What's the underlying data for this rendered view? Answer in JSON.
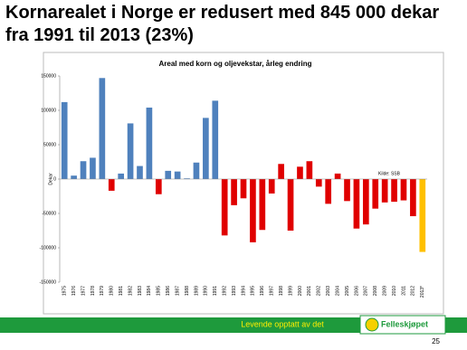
{
  "title": "Kornarealet i Norge er redusert med 845 000 dekar fra 1991 til 2013 (23%)",
  "chart_data": {
    "type": "bar",
    "title": "Areal med korn og oljevekstar, årleg endring",
    "y_label": "Dekar",
    "source": "Kilde: SSB",
    "categories": [
      "1975",
      "1976",
      "1977",
      "1978",
      "1979",
      "1980",
      "1981",
      "1982",
      "1983",
      "1984",
      "1985",
      "1986",
      "1987",
      "1988",
      "1989",
      "1990",
      "1991",
      "1992",
      "1993",
      "1994",
      "1995",
      "1996",
      "1997",
      "1998",
      "1999",
      "2000",
      "2001",
      "2002",
      "2003",
      "2004",
      "2005",
      "2006",
      "2007",
      "2008",
      "2009",
      "2010",
      "2011",
      "2012",
      "2013*"
    ],
    "values": [
      112000,
      5000,
      26000,
      31000,
      147000,
      -17000,
      8000,
      81000,
      19000,
      104000,
      -22000,
      12000,
      11000,
      1000,
      24000,
      89000,
      114000,
      -82000,
      -38000,
      -28000,
      -92000,
      -74000,
      -21000,
      22000,
      -75000,
      18000,
      26000,
      -11000,
      -36000,
      8000,
      -32000,
      -72000,
      -66000,
      -43000,
      -34000,
      -33000,
      -31000,
      -54000,
      -106000
    ],
    "colors": [
      "#4f81bd",
      "#4f81bd",
      "#4f81bd",
      "#4f81bd",
      "#4f81bd",
      "#e00000",
      "#4f81bd",
      "#4f81bd",
      "#4f81bd",
      "#4f81bd",
      "#e00000",
      "#4f81bd",
      "#4f81bd",
      "#4f81bd",
      "#4f81bd",
      "#4f81bd",
      "#4f81bd",
      "#e00000",
      "#e00000",
      "#e00000",
      "#e00000",
      "#e00000",
      "#e00000",
      "#e00000",
      "#e00000",
      "#e00000",
      "#e00000",
      "#e00000",
      "#e00000",
      "#e00000",
      "#e00000",
      "#e00000",
      "#e00000",
      "#e00000",
      "#e00000",
      "#e00000",
      "#e00000",
      "#e00000",
      "#ffc000"
    ],
    "ylim": [
      -150000,
      150000
    ],
    "yticks": [
      -150000,
      -100000,
      -50000,
      0,
      50000,
      100000,
      150000
    ]
  },
  "footer": {
    "slogan": "Levende opptatt av det",
    "logo_text": "Felleskjøpet",
    "page_number": "25"
  }
}
